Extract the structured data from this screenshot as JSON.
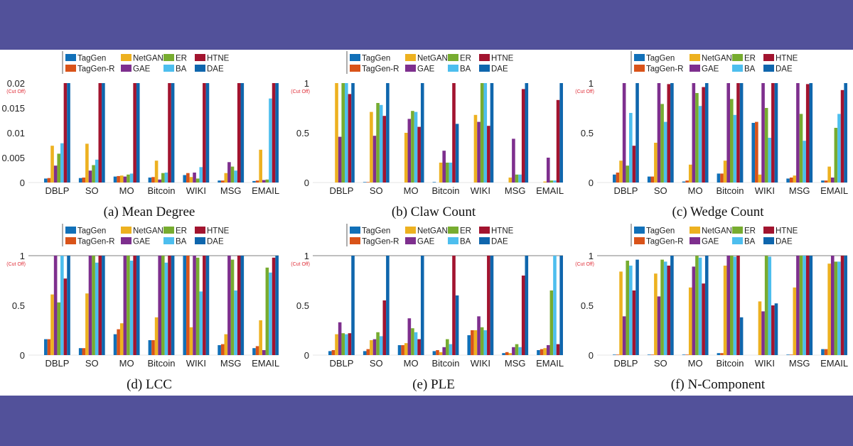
{
  "legend": [
    "TagGen",
    "TagGen-R",
    "NetGAN",
    "GAE",
    "ER",
    "BA",
    "HTNE",
    "DAE"
  ],
  "colors": [
    "#1170b8",
    "#d95319",
    "#edb120",
    "#7e2f8e",
    "#77ac30",
    "#4dbeee",
    "#a2142f",
    "#0f66ad"
  ],
  "background": "#52519a",
  "cut_off_label": "(Cut Off)",
  "chart_data": [
    {
      "type": "bar",
      "title": "(a) Mean Degree",
      "ylim": [
        0,
        0.02
      ],
      "yticks": [
        "0",
        "0.005",
        "0.01",
        "0.015",
        "0.02"
      ],
      "ytick_values": [
        0,
        0.005,
        0.01,
        0.015,
        0.02
      ],
      "categories": [
        "DBLP",
        "SO",
        "MO",
        "Bitcoin",
        "WIKI",
        "MSG",
        "EMAIL"
      ],
      "series": [
        {
          "name": "TagGen",
          "values": [
            0.0008,
            0.0009,
            0.0012,
            0.001,
            0.0015,
            0.0004,
            0.0003
          ]
        },
        {
          "name": "TagGen-R",
          "values": [
            0.0009,
            0.001,
            0.0013,
            0.0011,
            0.0019,
            0.0004,
            0.0004
          ]
        },
        {
          "name": "NetGAN",
          "values": [
            0.0074,
            0.0078,
            0.0014,
            0.0044,
            0.0011,
            0.0019,
            0.0066
          ]
        },
        {
          "name": "GAE",
          "values": [
            0.0034,
            0.0024,
            0.0012,
            0.0006,
            0.002,
            0.0041,
            0.0005
          ]
        },
        {
          "name": "ER",
          "values": [
            0.0058,
            0.0035,
            0.0016,
            0.0019,
            0.0008,
            0.0032,
            0.0006
          ]
        },
        {
          "name": "BA",
          "values": [
            0.0079,
            0.0046,
            0.0018,
            0.002,
            0.0031,
            0.0024,
            0.0169
          ]
        },
        {
          "name": "HTNE",
          "values": [
            0.02,
            0.02,
            0.02,
            0.02,
            0.02,
            0.02,
            0.02
          ]
        },
        {
          "name": "DAE",
          "values": [
            0.02,
            0.02,
            0.02,
            0.02,
            0.02,
            0.02,
            0.02
          ]
        }
      ]
    },
    {
      "type": "bar",
      "title": "(b) Claw Count",
      "ylim": [
        0,
        1
      ],
      "yticks": [
        "0",
        "0.5",
        "1"
      ],
      "ytick_values": [
        0,
        0.5,
        1
      ],
      "categories": [
        "DBLP",
        "SO",
        "MO",
        "Bitcoin",
        "WIKI",
        "MSG",
        "EMAIL"
      ],
      "series": [
        {
          "name": "TagGen",
          "values": [
            0,
            0.005,
            0,
            0.005,
            0,
            0,
            0
          ]
        },
        {
          "name": "TagGen-R",
          "values": [
            0,
            0.005,
            0,
            0,
            0,
            0,
            0
          ]
        },
        {
          "name": "NetGAN",
          "values": [
            1,
            0.71,
            0.5,
            0.2,
            0.68,
            0.05,
            0.01
          ]
        },
        {
          "name": "GAE",
          "values": [
            0.46,
            0.47,
            0.64,
            0.32,
            0.61,
            0.44,
            0.25
          ]
        },
        {
          "name": "ER",
          "values": [
            1,
            0.8,
            0.72,
            0.2,
            1,
            0.08,
            0.02
          ]
        },
        {
          "name": "BA",
          "values": [
            1,
            0.78,
            0.71,
            0.2,
            1,
            0.08,
            0.02
          ]
        },
        {
          "name": "HTNE",
          "values": [
            0.89,
            0.67,
            0.56,
            1,
            0.57,
            0.94,
            0.83
          ]
        },
        {
          "name": "DAE",
          "values": [
            1,
            1,
            1,
            0.59,
            1,
            1,
            1
          ]
        }
      ]
    },
    {
      "type": "bar",
      "title": "(c) Wedge Count",
      "ylim": [
        0,
        1
      ],
      "yticks": [
        "0",
        "0.5",
        "1"
      ],
      "ytick_values": [
        0,
        0.5,
        1
      ],
      "categories": [
        "DBLP",
        "SO",
        "MO",
        "Bitcoin",
        "WIKI",
        "MSG",
        "EMAIL"
      ],
      "series": [
        {
          "name": "TagGen",
          "values": [
            0.08,
            0.06,
            0.01,
            0.09,
            0.6,
            0.04,
            0.02
          ]
        },
        {
          "name": "TagGen-R",
          "values": [
            0.1,
            0.06,
            0.02,
            0.09,
            0.61,
            0.05,
            0.02
          ]
        },
        {
          "name": "NetGAN",
          "values": [
            0.22,
            0.4,
            0.18,
            0.22,
            0.08,
            0.07,
            0.16
          ]
        },
        {
          "name": "GAE",
          "values": [
            1,
            1,
            1,
            1,
            1,
            1,
            0.05
          ]
        },
        {
          "name": "ER",
          "values": [
            0.17,
            0.79,
            0.9,
            0.84,
            0.75,
            0.69,
            0.55
          ]
        },
        {
          "name": "BA",
          "values": [
            0.7,
            0.61,
            0.77,
            0.68,
            0.45,
            0.42,
            0.69
          ]
        },
        {
          "name": "HTNE",
          "values": [
            0.37,
            0.99,
            0.96,
            1,
            1,
            0.99,
            0.93
          ]
        },
        {
          "name": "DAE",
          "values": [
            1,
            1,
            1,
            1,
            1,
            1,
            1
          ]
        }
      ]
    },
    {
      "type": "bar",
      "title": "(d) LCC",
      "ylim": [
        0,
        1
      ],
      "yticks": [
        "0",
        "0.5",
        "1"
      ],
      "ytick_values": [
        0,
        0.5,
        1
      ],
      "categories": [
        "DBLP",
        "SO",
        "MO",
        "Bitcoin",
        "WIKI",
        "MSG",
        "EMAIL"
      ],
      "series": [
        {
          "name": "TagGen",
          "values": [
            0.16,
            0.07,
            0.21,
            0.15,
            1,
            0.1,
            0.07
          ]
        },
        {
          "name": "TagGen-R",
          "values": [
            0.16,
            0.07,
            0.26,
            0.15,
            1,
            0.11,
            0.09
          ]
        },
        {
          "name": "NetGAN",
          "values": [
            0.61,
            0.62,
            0.32,
            0.38,
            0.28,
            0.21,
            0.35
          ]
        },
        {
          "name": "GAE",
          "values": [
            1,
            1,
            1,
            1,
            1,
            1,
            0.05
          ]
        },
        {
          "name": "ER",
          "values": [
            0.53,
            1,
            1,
            1,
            0.98,
            0.96,
            0.88
          ]
        },
        {
          "name": "BA",
          "values": [
            1,
            0.93,
            0.95,
            0.93,
            0.64,
            0.65,
            0.83
          ]
        },
        {
          "name": "HTNE",
          "values": [
            0.77,
            1,
            1,
            1,
            1,
            1,
            0.98
          ]
        },
        {
          "name": "DAE",
          "values": [
            1,
            1,
            1,
            1,
            1,
            1,
            1
          ]
        }
      ]
    },
    {
      "type": "bar",
      "title": "(e) PLE",
      "ylim": [
        0,
        1
      ],
      "yticks": [
        "0",
        "0.5",
        "1"
      ],
      "ytick_values": [
        0,
        0.5,
        1
      ],
      "categories": [
        "DBLP",
        "SO",
        "MO",
        "Bitcoin",
        "WIKI",
        "MSG",
        "EMAIL"
      ],
      "series": [
        {
          "name": "TagGen",
          "values": [
            0.04,
            0.04,
            0.1,
            0.04,
            0.2,
            0.02,
            0.05
          ]
        },
        {
          "name": "TagGen-R",
          "values": [
            0.05,
            0.06,
            0.1,
            0.05,
            0.25,
            0.03,
            0.06
          ]
        },
        {
          "name": "NetGAN",
          "values": [
            0.21,
            0.15,
            0.12,
            0.03,
            0.25,
            0.02,
            0.07
          ]
        },
        {
          "name": "GAE",
          "values": [
            0.33,
            0.16,
            0.37,
            0.08,
            0.39,
            0.08,
            0.1
          ]
        },
        {
          "name": "ER",
          "values": [
            0.22,
            0.23,
            0.27,
            0.16,
            0.28,
            0.11,
            0.65
          ]
        },
        {
          "name": "BA",
          "values": [
            0.21,
            0.19,
            0.23,
            0.11,
            0.25,
            0.08,
            1
          ]
        },
        {
          "name": "HTNE",
          "values": [
            0.22,
            0.55,
            0.16,
            1,
            1,
            0.8,
            0.11
          ]
        },
        {
          "name": "DAE",
          "values": [
            1,
            1,
            1,
            0.6,
            1,
            1,
            1
          ]
        }
      ]
    },
    {
      "type": "bar",
      "title": "(f) N-Component",
      "ylim": [
        0,
        1
      ],
      "yticks": [
        "0",
        "0.5",
        "1"
      ],
      "ytick_values": [
        0,
        0.5,
        1
      ],
      "categories": [
        "DBLP",
        "SO",
        "MO",
        "Bitcoin",
        "WIKI",
        "MSG",
        "EMAIL"
      ],
      "series": [
        {
          "name": "TagGen",
          "values": [
            0.005,
            0.005,
            0.005,
            0.02,
            0,
            0.005,
            0.06
          ]
        },
        {
          "name": "TagGen-R",
          "values": [
            0.005,
            0.005,
            0.005,
            0.02,
            0,
            0.005,
            0.06
          ]
        },
        {
          "name": "NetGAN",
          "values": [
            0.84,
            0.82,
            0.68,
            0.9,
            0.54,
            0.68,
            0.92
          ]
        },
        {
          "name": "GAE",
          "values": [
            0.39,
            0.59,
            0.89,
            1,
            0.44,
            1,
            1
          ]
        },
        {
          "name": "ER",
          "values": [
            0.95,
            0.96,
            1,
            1,
            1,
            1,
            0.94
          ]
        },
        {
          "name": "BA",
          "values": [
            0.9,
            0.94,
            0.98,
            0.99,
            0.99,
            1,
            0.94
          ]
        },
        {
          "name": "HTNE",
          "values": [
            0.65,
            0.9,
            0.72,
            1,
            0.5,
            1,
            1
          ]
        },
        {
          "name": "DAE",
          "values": [
            0.96,
            1,
            1,
            0.38,
            0.52,
            1,
            1
          ]
        }
      ]
    }
  ]
}
